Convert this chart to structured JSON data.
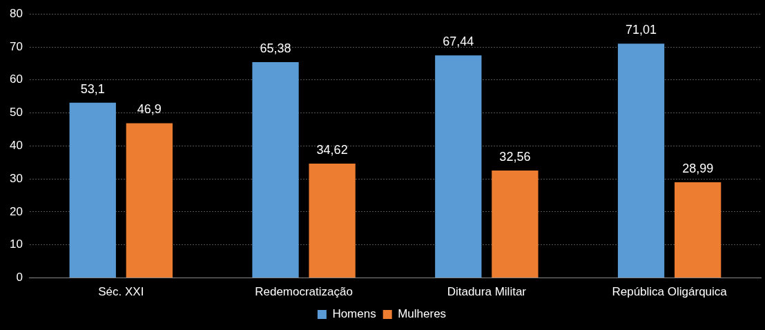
{
  "chart_data": {
    "type": "bar",
    "categories": [
      "Séc. XXI",
      "Redemocratização",
      "Ditadura Militar",
      "República Oligárquica"
    ],
    "series": [
      {
        "name": "Homens",
        "color": "#5b9bd5",
        "values": [
          53.1,
          65.38,
          67.44,
          71.01
        ],
        "value_labels": [
          "53,1",
          "65,38",
          "67,44",
          "71,01"
        ]
      },
      {
        "name": "Mulheres",
        "color": "#ed7d31",
        "values": [
          46.9,
          34.62,
          32.56,
          28.99
        ],
        "value_labels": [
          "46,9",
          "34,62",
          "32,56",
          "28,99"
        ]
      }
    ],
    "ylim": [
      0,
      80
    ],
    "yticks": [
      0,
      10,
      20,
      30,
      40,
      50,
      60,
      70,
      80
    ],
    "grid": "y",
    "legend": "bottom"
  }
}
